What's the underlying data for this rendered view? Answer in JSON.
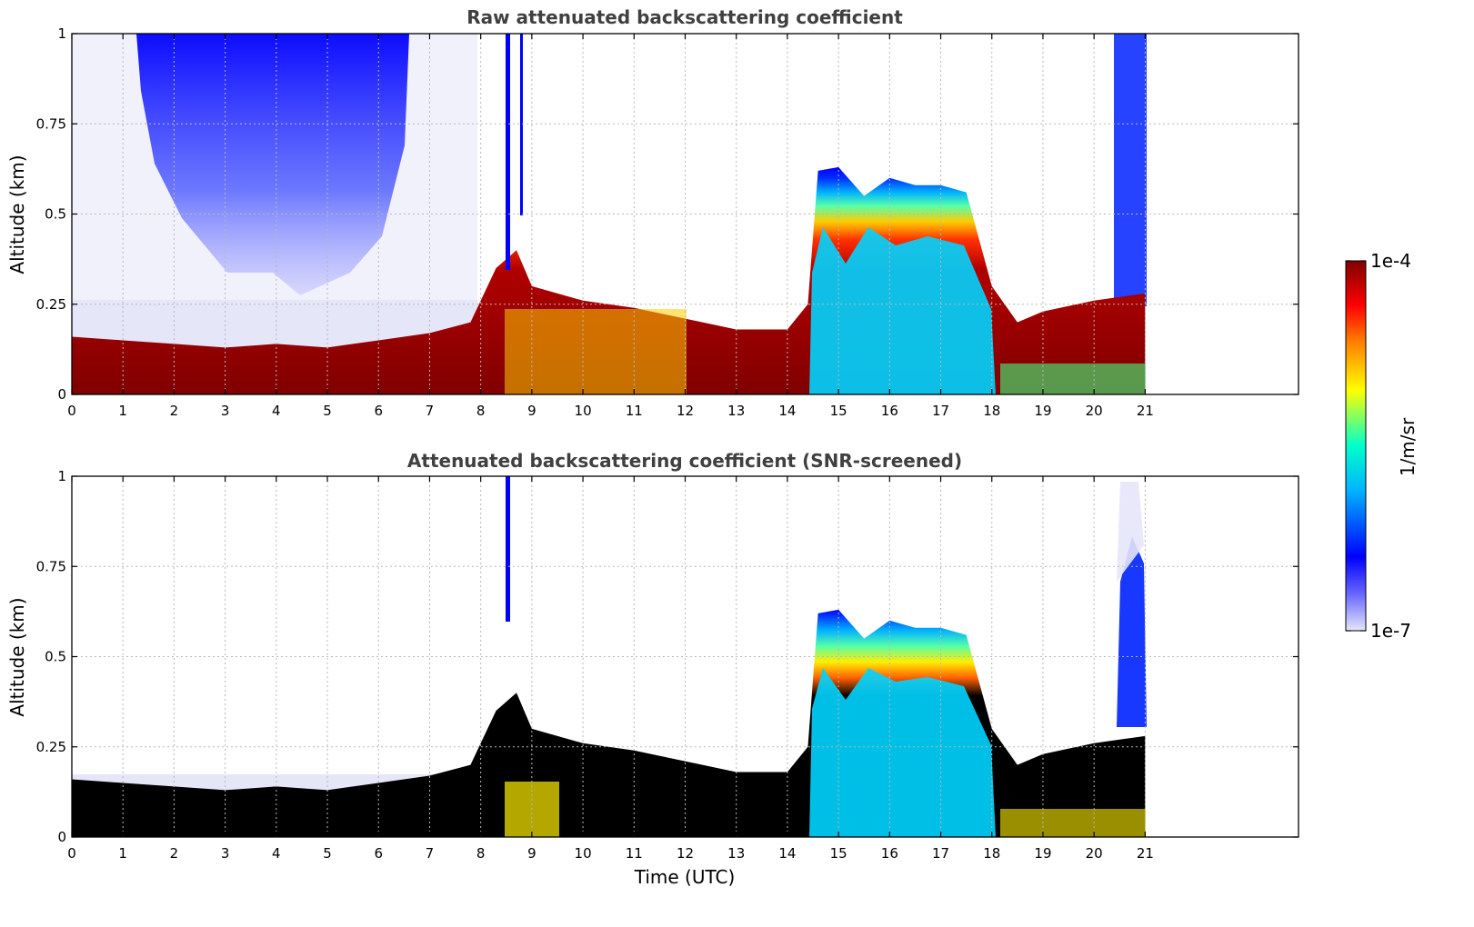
{
  "chart_data": [
    {
      "type": "heatmap",
      "title": "Raw attenuated backscattering coefficient",
      "xlabel": "",
      "ylabel": "Altitude (km)",
      "xlim": [
        0,
        24
      ],
      "ylim": [
        0,
        1
      ],
      "x_ticks": [
        0,
        1,
        2,
        3,
        4,
        5,
        6,
        7,
        8,
        9,
        10,
        11,
        12,
        13,
        14,
        15,
        16,
        17,
        18,
        19,
        20,
        21
      ],
      "y_ticks": [
        {
          "value": 0,
          "label": "0"
        },
        {
          "value": 0.25,
          "label": "0.25"
        },
        {
          "value": 0.5,
          "label": "0.5"
        },
        {
          "value": 0.75,
          "label": "0.75"
        },
        {
          "value": 1,
          "label": "1"
        }
      ],
      "data_end_hour": 21,
      "boundary_layer_top_km": [
        [
          0,
          0.16
        ],
        [
          1,
          0.15
        ],
        [
          2,
          0.14
        ],
        [
          3,
          0.13
        ],
        [
          4,
          0.14
        ],
        [
          5,
          0.13
        ],
        [
          6,
          0.15
        ],
        [
          7,
          0.17
        ],
        [
          7.8,
          0.2
        ],
        [
          8.3,
          0.35
        ],
        [
          8.7,
          0.4
        ],
        [
          9,
          0.3
        ],
        [
          10,
          0.26
        ],
        [
          11,
          0.24
        ],
        [
          12,
          0.21
        ],
        [
          13,
          0.18
        ],
        [
          14,
          0.18
        ],
        [
          14.4,
          0.25
        ],
        [
          14.6,
          0.62
        ],
        [
          15,
          0.63
        ],
        [
          15.5,
          0.55
        ],
        [
          16,
          0.6
        ],
        [
          16.5,
          0.58
        ],
        [
          17,
          0.58
        ],
        [
          17.5,
          0.56
        ],
        [
          18,
          0.3
        ],
        [
          18.5,
          0.2
        ],
        [
          19,
          0.23
        ],
        [
          20,
          0.26
        ],
        [
          20.5,
          0.27
        ],
        [
          21,
          0.28
        ]
      ],
      "grid": true
    },
    {
      "type": "heatmap",
      "title": "Attenuated backscattering coefficient (SNR-screened)",
      "xlabel": "Time (UTC)",
      "ylabel": "Altitude (km)",
      "xlim": [
        0,
        24
      ],
      "ylim": [
        0,
        1
      ],
      "x_ticks": [
        0,
        1,
        2,
        3,
        4,
        5,
        6,
        7,
        8,
        9,
        10,
        11,
        12,
        13,
        14,
        15,
        16,
        17,
        18,
        19,
        20,
        21
      ],
      "y_ticks": [
        {
          "value": 0,
          "label": "0"
        },
        {
          "value": 0.25,
          "label": "0.25"
        },
        {
          "value": 0.5,
          "label": "0.5"
        },
        {
          "value": 0.75,
          "label": "0.75"
        },
        {
          "value": 1,
          "label": "1"
        }
      ],
      "data_end_hour": 21,
      "grid": true
    }
  ],
  "colorbar": {
    "label": "1/m/sr",
    "min_label": "1e-7",
    "max_label": "1e-4",
    "colormap": [
      "#e6e6f9",
      "#0000ff",
      "#00b4ff",
      "#00ffcc",
      "#ffff00",
      "#ff8000",
      "#ff0000",
      "#800000"
    ]
  }
}
